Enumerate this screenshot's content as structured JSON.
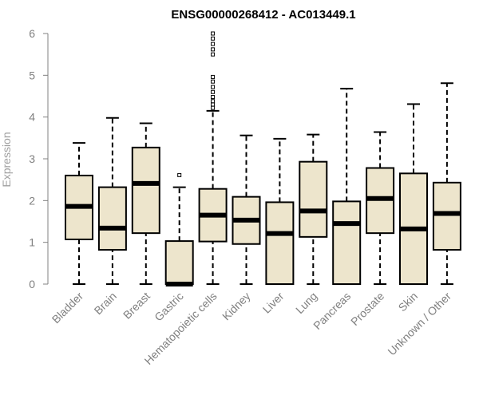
{
  "chart_data": {
    "type": "boxplot",
    "title": "ENSG00000268412 - AC013449.1",
    "xlabel": "",
    "ylabel": "Expression",
    "ylim": [
      0,
      6
    ],
    "yticks": [
      "0",
      "1",
      "2",
      "3",
      "4",
      "5",
      "6"
    ],
    "grid": false,
    "legend": "none",
    "colors": {
      "box_fill": "#ede5cc",
      "stroke": "#000000",
      "axis": "#808080"
    },
    "categories": [
      "Bladder",
      "Brain",
      "Breast",
      "Gastric",
      "Hematopoietic cells",
      "Kidney",
      "Liver",
      "Lung",
      "Pancreas",
      "Prostate",
      "Skin",
      "Unknown / Other"
    ],
    "boxes": [
      {
        "name": "Bladder",
        "whisker_low": 0,
        "q1": 1.07,
        "median": 1.86,
        "q3": 2.6,
        "whisker_high": 3.38,
        "outliers": []
      },
      {
        "name": "Brain",
        "whisker_low": 0,
        "q1": 0.82,
        "median": 1.34,
        "q3": 2.32,
        "whisker_high": 3.98,
        "outliers": []
      },
      {
        "name": "Breast",
        "whisker_low": 0,
        "q1": 1.22,
        "median": 2.41,
        "q3": 3.27,
        "whisker_high": 3.85,
        "outliers": []
      },
      {
        "name": "Gastric",
        "whisker_low": 0,
        "q1": 0,
        "median": 0,
        "q3": 1.03,
        "whisker_high": 2.32,
        "outliers": [
          2.61
        ]
      },
      {
        "name": "Hematopoietic cells",
        "whisker_low": 0,
        "q1": 1.02,
        "median": 1.65,
        "q3": 2.28,
        "whisker_high": 4.15,
        "outliers": [
          4.22,
          4.3,
          4.38,
          4.48,
          4.6,
          4.72,
          4.85,
          4.96,
          5.5,
          5.62,
          5.75,
          5.88,
          6.0
        ]
      },
      {
        "name": "Kidney",
        "whisker_low": 0,
        "q1": 0.96,
        "median": 1.53,
        "q3": 2.09,
        "whisker_high": 3.56,
        "outliers": []
      },
      {
        "name": "Liver",
        "whisker_low": 0,
        "q1": 0,
        "median": 1.21,
        "q3": 1.96,
        "whisker_high": 3.48,
        "outliers": []
      },
      {
        "name": "Lung",
        "whisker_low": 0,
        "q1": 1.13,
        "median": 1.75,
        "q3": 2.93,
        "whisker_high": 3.58,
        "outliers": []
      },
      {
        "name": "Pancreas",
        "whisker_low": 0,
        "q1": 0,
        "median": 1.45,
        "q3": 1.98,
        "whisker_high": 4.68,
        "outliers": []
      },
      {
        "name": "Prostate",
        "whisker_low": 0,
        "q1": 1.22,
        "median": 2.05,
        "q3": 2.78,
        "whisker_high": 3.64,
        "outliers": []
      },
      {
        "name": "Skin",
        "whisker_low": 0,
        "q1": 0,
        "median": 1.32,
        "q3": 2.65,
        "whisker_high": 4.31,
        "outliers": []
      },
      {
        "name": "Unknown / Other",
        "whisker_low": 0,
        "q1": 0.82,
        "median": 1.69,
        "q3": 2.43,
        "whisker_high": 4.81,
        "outliers": []
      }
    ]
  }
}
